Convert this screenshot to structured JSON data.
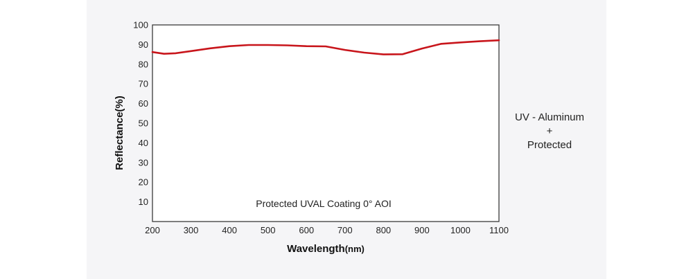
{
  "chart_data": {
    "type": "line",
    "title": "",
    "annotation": "Protected UVAL Coating  0°  AOI",
    "xlabel": "Wavelength",
    "xlabel_unit": "(nm)",
    "ylabel": "Reflectance(%)",
    "xlim": [
      200,
      1100
    ],
    "ylim": [
      0,
      100
    ],
    "x_ticks": [
      200,
      300,
      400,
      500,
      600,
      700,
      800,
      900,
      1000,
      1100
    ],
    "y_ticks": [
      10,
      20,
      30,
      40,
      50,
      60,
      70,
      80,
      90,
      100
    ],
    "grid": "vertical",
    "series": [
      {
        "color": "#c8151b",
        "x": [
          200,
          230,
          260,
          300,
          350,
          400,
          450,
          500,
          550,
          600,
          650,
          700,
          750,
          800,
          850,
          900,
          950,
          1000,
          1050,
          1100
        ],
        "y": [
          86.2,
          85.3,
          85.6,
          86.7,
          88.1,
          89.2,
          89.8,
          89.8,
          89.6,
          89.2,
          89.1,
          87.3,
          85.9,
          85.0,
          85.1,
          88.0,
          90.4,
          91.1,
          91.7,
          92.2
        ]
      }
    ]
  },
  "side_label": {
    "line1": "UV - Aluminum",
    "line2": "+",
    "line3": "Protected"
  }
}
